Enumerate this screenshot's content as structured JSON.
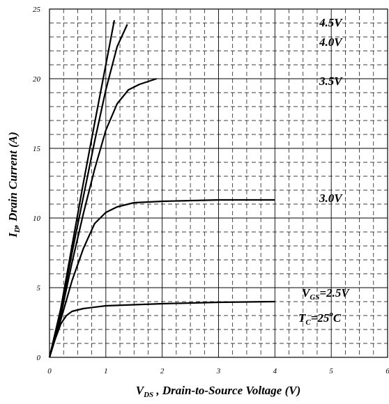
{
  "chart_data": {
    "type": "line",
    "title": "",
    "xlabel": {
      "main": "V",
      "sub": "DS",
      "rest": " , Drain-to-Source Voltage (V)"
    },
    "ylabel": {
      "main": "I",
      "sub": "D",
      "rest": ", Drain Current (A)"
    },
    "xlim": [
      0,
      6
    ],
    "ylim": [
      0,
      25
    ],
    "x_ticks": [
      "0",
      "1",
      "2",
      "3",
      "4",
      "5",
      "6"
    ],
    "y_ticks": [
      "0",
      "5",
      "10",
      "15",
      "20",
      "25"
    ],
    "grid": "major solid, minor dashed",
    "series": [
      {
        "name": "4.5V",
        "points": [
          [
            0,
            0
          ],
          [
            0.2,
            3.5
          ],
          [
            0.4,
            8
          ],
          [
            0.6,
            12.5
          ],
          [
            0.8,
            16.8
          ],
          [
            1.0,
            21
          ],
          [
            1.15,
            24.2
          ]
        ]
      },
      {
        "name": "4.0V",
        "points": [
          [
            0,
            0
          ],
          [
            0.2,
            3.3
          ],
          [
            0.4,
            7.5
          ],
          [
            0.6,
            11.5
          ],
          [
            0.8,
            15.5
          ],
          [
            1.0,
            19.2
          ],
          [
            1.2,
            22.3
          ],
          [
            1.38,
            23.9
          ]
        ]
      },
      {
        "name": "3.5V",
        "points": [
          [
            0,
            0
          ],
          [
            0.2,
            3.0
          ],
          [
            0.4,
            6.8
          ],
          [
            0.6,
            10.3
          ],
          [
            0.8,
            13.5
          ],
          [
            1.0,
            16.3
          ],
          [
            1.2,
            18.2
          ],
          [
            1.4,
            19.2
          ],
          [
            1.6,
            19.6
          ],
          [
            1.9,
            20.0
          ]
        ]
      },
      {
        "name": "3.0V",
        "points": [
          [
            0,
            0
          ],
          [
            0.2,
            2.7
          ],
          [
            0.4,
            5.5
          ],
          [
            0.6,
            7.8
          ],
          [
            0.8,
            9.6
          ],
          [
            1.0,
            10.4
          ],
          [
            1.2,
            10.8
          ],
          [
            1.5,
            11.1
          ],
          [
            2.0,
            11.2
          ],
          [
            3.0,
            11.3
          ],
          [
            4.0,
            11.3
          ]
        ]
      },
      {
        "name": "V_GS=2.5V",
        "points": [
          [
            0,
            0
          ],
          [
            0.1,
            1.3
          ],
          [
            0.2,
            2.4
          ],
          [
            0.3,
            3.0
          ],
          [
            0.4,
            3.3
          ],
          [
            0.6,
            3.5
          ],
          [
            1.0,
            3.7
          ],
          [
            2.0,
            3.85
          ],
          [
            3.0,
            3.95
          ],
          [
            4.0,
            4.0
          ]
        ]
      }
    ],
    "annotations": [
      {
        "text": "4.5V"
      },
      {
        "text": "4.0V"
      },
      {
        "text": "3.5V"
      },
      {
        "text": "3.0V"
      },
      {
        "main": "V",
        "sub": "GS",
        "rest": "=2.5V"
      },
      {
        "main": "T",
        "sub": "C",
        "rest": "=25",
        "sup": "o",
        "tail": "C"
      }
    ]
  }
}
